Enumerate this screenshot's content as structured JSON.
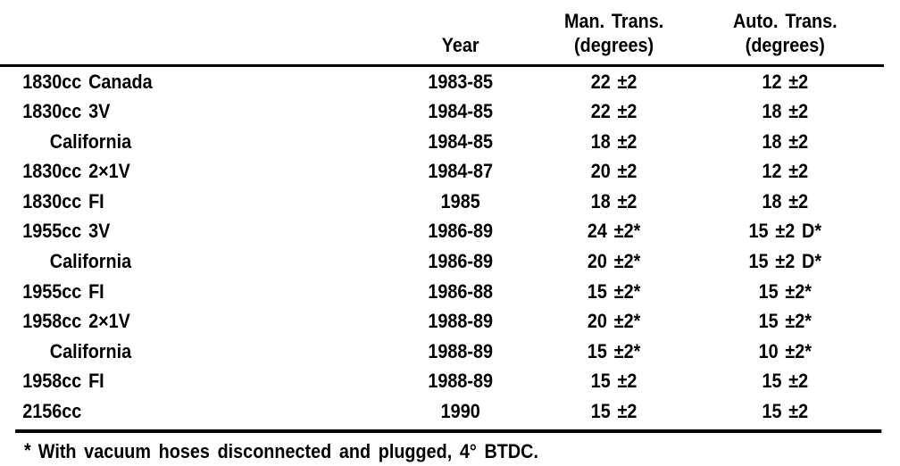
{
  "page": {
    "background_color": "#ffffff",
    "text_color": "#000000"
  },
  "table": {
    "header": {
      "engine": "",
      "year": "Year",
      "man_line1": "Man. Trans.",
      "man_line2": "(degrees)",
      "auto_line1": "Auto. Trans.",
      "auto_line2": "(degrees)"
    },
    "rows": [
      {
        "engine": "1830cc Canada",
        "indent": false,
        "year": "1983-85",
        "man_trans": "22 ±2",
        "auto_trans": "12 ±2"
      },
      {
        "engine": "1830cc 3V",
        "indent": false,
        "year": "1984-85",
        "man_trans": "22 ±2",
        "auto_trans": "18 ±2"
      },
      {
        "engine": "California",
        "indent": true,
        "year": "1984-85",
        "man_trans": "18 ±2",
        "auto_trans": "18 ±2"
      },
      {
        "engine": "1830cc 2×1V",
        "indent": false,
        "year": "1984-87",
        "man_trans": "20 ±2",
        "auto_trans": "12 ±2"
      },
      {
        "engine": "1830cc FI",
        "indent": false,
        "year": "1985",
        "man_trans": "18 ±2",
        "auto_trans": "18 ±2"
      },
      {
        "engine": "1955cc 3V",
        "indent": false,
        "year": "1986-89",
        "man_trans": "24 ±2*",
        "auto_trans": "15 ±2 D*"
      },
      {
        "engine": "California",
        "indent": true,
        "year": "1986-89",
        "man_trans": "20 ±2*",
        "auto_trans": "15 ±2 D*"
      },
      {
        "engine": "1955cc FI",
        "indent": false,
        "year": "1986-88",
        "man_trans": "15 ±2*",
        "auto_trans": "15 ±2*"
      },
      {
        "engine": "1958cc 2×1V",
        "indent": false,
        "year": "1988-89",
        "man_trans": "20 ±2*",
        "auto_trans": "15 ±2*"
      },
      {
        "engine": "California",
        "indent": true,
        "year": "1988-89",
        "man_trans": "15 ±2*",
        "auto_trans": "10 ±2*"
      },
      {
        "engine": "1958cc FI",
        "indent": false,
        "year": "1988-89",
        "man_trans": "15 ±2",
        "auto_trans": "15 ±2"
      },
      {
        "engine": "2156cc",
        "indent": false,
        "year": "1990",
        "man_trans": "15 ±2",
        "auto_trans": "15 ±2"
      }
    ]
  },
  "footnote": {
    "marker": "*",
    "text": "With vacuum hoses disconnected and plugged, 4° BTDC."
  }
}
